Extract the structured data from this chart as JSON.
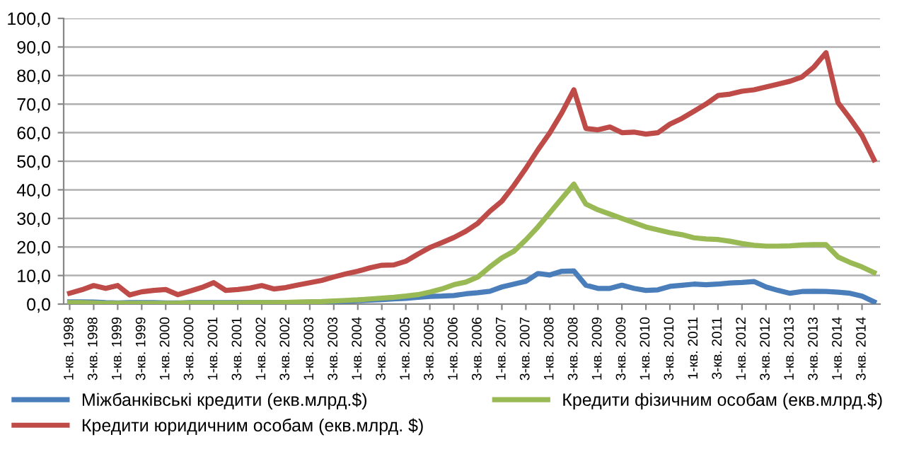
{
  "chart_data": {
    "type": "line",
    "categories": [
      "1-кв. 1998",
      null,
      "3-кв. 1998",
      null,
      "1-кв. 1999",
      null,
      "3-кв. 1999",
      null,
      "1-кв. 2000",
      null,
      "3-кв. 2000",
      null,
      "1-кв. 2001",
      null,
      "3-кв. 2001",
      null,
      "1-кв. 2002",
      null,
      "3-кв. 2002",
      null,
      "1-кв. 2003",
      null,
      "3-кв. 2003",
      null,
      "1-кв. 2004",
      null,
      "3-кв. 2004",
      null,
      "1-кв. 2005",
      null,
      "3-кв. 2005",
      null,
      "1-кв. 2006",
      null,
      "3-кв. 2006",
      null,
      "1-кв. 2007",
      null,
      "3-кв. 2007",
      null,
      "1-кв. 2008",
      null,
      "3-кв. 2008",
      null,
      "1-кв. 2009",
      null,
      "3-кв. 2009",
      null,
      "1-кв. 2010",
      null,
      "3-кв. 2010",
      null,
      "1-кв. 2011",
      null,
      "3-кв. 2011",
      null,
      "1-кв. 2012",
      null,
      "3-кв. 2012",
      null,
      "1-кв. 2013",
      null,
      "3-кв. 2013",
      null,
      "1-кв. 2014",
      null,
      "3-кв. 2014",
      null
    ],
    "series": [
      {
        "name": "Міжбанківські кредити (екв.млрд.$)",
        "color": "#4a7ebb",
        "values": [
          0.8,
          0.8,
          0.7,
          0.5,
          0.4,
          0.5,
          0.5,
          0.5,
          0.4,
          0.4,
          0.5,
          0.5,
          0.5,
          0.5,
          0.5,
          0.5,
          0.5,
          0.5,
          0.5,
          0.6,
          0.7,
          0.8,
          0.9,
          1.0,
          1.2,
          1.4,
          1.6,
          1.8,
          2.0,
          2.4,
          2.7,
          2.8,
          3.0,
          3.6,
          4.0,
          4.5,
          6.0,
          7.0,
          8.0,
          10.7,
          10.2,
          11.5,
          11.6,
          6.6,
          5.5,
          5.5,
          6.6,
          5.5,
          4.8,
          5.0,
          6.2,
          6.6,
          7.0,
          6.8,
          7.0,
          7.4,
          7.6,
          7.9,
          6.0,
          4.8,
          3.8,
          4.4,
          4.5,
          4.4,
          4.2,
          3.8,
          2.8,
          0.8
        ]
      },
      {
        "name": "Кредити юридичним особам (екв.млрд. $)",
        "color": "#be4b48",
        "values": [
          3.8,
          5,
          6.5,
          5.5,
          6.5,
          3.2,
          4.3,
          4.8,
          5.1,
          3.3,
          4.5,
          5.8,
          7.5,
          4.8,
          5.1,
          5.6,
          6.5,
          5.3,
          5.8,
          6.7,
          7.5,
          8.3,
          9.5,
          10.6,
          11.5,
          12.7,
          13.6,
          13.7,
          15,
          17.5,
          19.8,
          21.5,
          23.3,
          25.5,
          28.3,
          32.5,
          36,
          41.5,
          47.5,
          54,
          60,
          67,
          75,
          61.5,
          61,
          62,
          60,
          60.2,
          59.5,
          60,
          63,
          65,
          67.5,
          70,
          73,
          73.5,
          74.5,
          75,
          76,
          77,
          78,
          79.5,
          83,
          88,
          70.5,
          65,
          59,
          50.5
        ]
      },
      {
        "name": "Кредити фізичним особам (екв.млрд.$)",
        "color": "#98b954",
        "values": [
          0.5,
          0.5,
          0.4,
          0.3,
          0.3,
          0.3,
          0.3,
          0.3,
          0.3,
          0.3,
          0.4,
          0.4,
          0.4,
          0.4,
          0.4,
          0.5,
          0.5,
          0.5,
          0.6,
          0.7,
          0.8,
          0.9,
          1.1,
          1.3,
          1.5,
          1.8,
          2.1,
          2.4,
          2.8,
          3.3,
          4.2,
          5.3,
          6.8,
          7.7,
          9.5,
          13,
          16.2,
          18.5,
          22.5,
          27,
          32,
          37,
          42,
          35,
          33,
          31.5,
          30,
          28.5,
          27,
          26,
          25,
          24.3,
          23.2,
          22.8,
          22.6,
          22,
          21.2,
          20.6,
          20.3,
          20.3,
          20.4,
          20.7,
          20.8,
          20.8,
          16.5,
          14.6,
          13,
          11
        ]
      }
    ],
    "ylim": [
      0,
      100
    ],
    "yticks": [
      {
        "value": 0,
        "label": "0,0"
      },
      {
        "value": 10,
        "label": "10,0"
      },
      {
        "value": 20,
        "label": "20,0"
      },
      {
        "value": 30,
        "label": "30,0"
      },
      {
        "value": 40,
        "label": "40,0"
      },
      {
        "value": 50,
        "label": "50,0"
      },
      {
        "value": 60,
        "label": "60,0"
      },
      {
        "value": 70,
        "label": "70,0"
      },
      {
        "value": 80,
        "label": "80,0"
      },
      {
        "value": 90,
        "label": "90,0"
      },
      {
        "value": 100,
        "label": "100,0"
      }
    ],
    "grid": "y",
    "legend": "bottom",
    "marker": "none",
    "line_style": "solid"
  }
}
